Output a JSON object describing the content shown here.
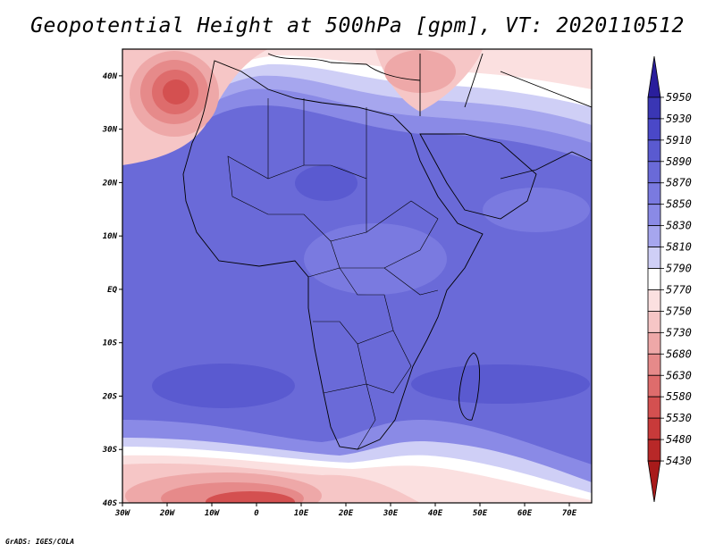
{
  "title": "Geopotential Height at 500hPa [gpm], VT: 2020110512",
  "footer": "GrADS: IGES/COLA",
  "map": {
    "projection": "lat-lon",
    "lon_range": [
      -30,
      75
    ],
    "lat_range": [
      -40,
      45
    ],
    "x_ticks": [
      "30W",
      "20W",
      "10W",
      "0",
      "10E",
      "20E",
      "30E",
      "40E",
      "50E",
      "60E",
      "70E"
    ],
    "y_ticks": [
      "40S",
      "30S",
      "20S",
      "10S",
      "EQ",
      "10N",
      "20N",
      "30N",
      "40N"
    ],
    "features": [
      "coastlines",
      "country-borders"
    ]
  },
  "colorbar": {
    "levels": [
      "5950",
      "5930",
      "5910",
      "5890",
      "5870",
      "5850",
      "5830",
      "5810",
      "5790",
      "5770",
      "5750",
      "5730",
      "5680",
      "5630",
      "5580",
      "5530",
      "5480",
      "5430"
    ],
    "colors": [
      "#2a1e9c",
      "#3a36b4",
      "#4a48c8",
      "#5a5ad0",
      "#6a6ad8",
      "#7a7ae0",
      "#8a8ae6",
      "#a6a6ee",
      "#cfcff6",
      "#ffffff",
      "#fbe0e0",
      "#f6c6c6",
      "#eea8a8",
      "#e68a8a",
      "#de6c6c",
      "#d45050",
      "#c83a3a",
      "#b82828",
      "#a81a1a"
    ]
  }
}
